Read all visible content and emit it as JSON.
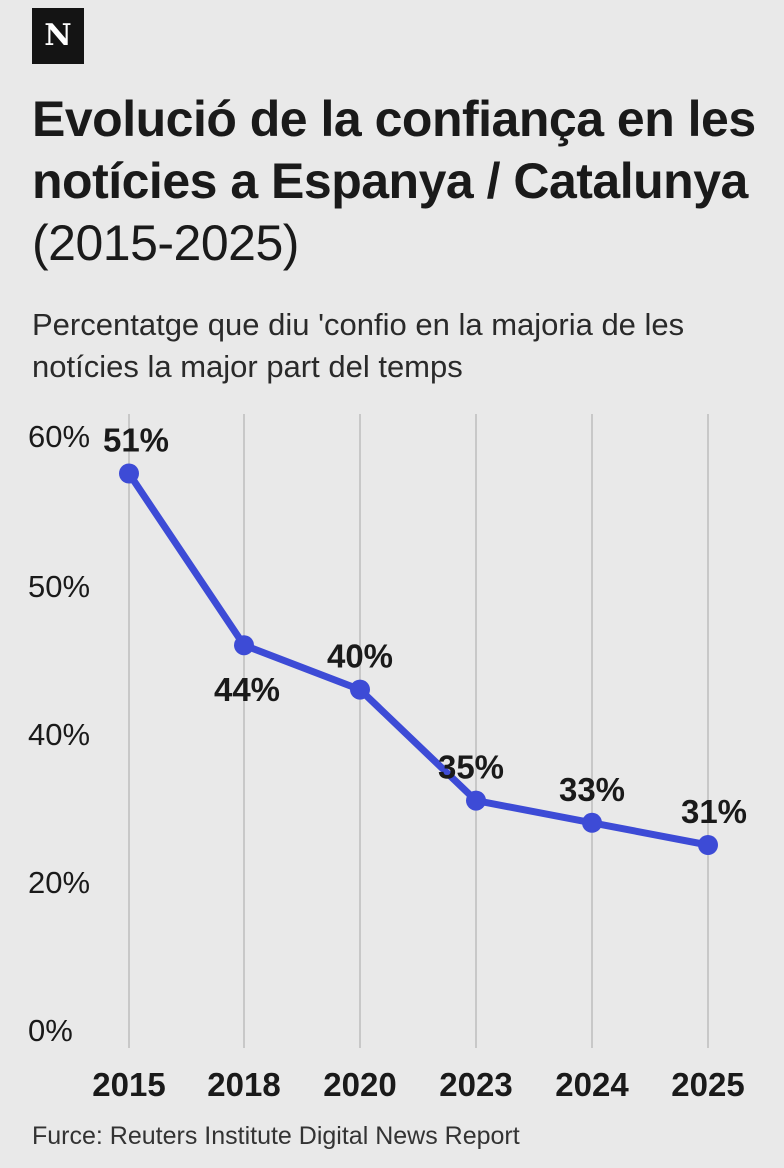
{
  "logo": {
    "letter": "N"
  },
  "header": {
    "title_main": "Evolució de la confiança en les notícies a Espanya / Catalunya",
    "title_years": "(2015-2025)",
    "subtitle": "Percentatge que diu 'confio en la majoria de les notícies la major part del temps"
  },
  "footer": {
    "source": "Furce: Reuters Institute Digital News Report"
  },
  "colors": {
    "line": "#3d4bd6",
    "grid": "#c8c8c8",
    "background": "#e9e9e9",
    "text": "#1a1a1a"
  },
  "chart_data": {
    "type": "line",
    "title": "Evolució de la confiança en les notícies a Espanya / Catalunya (2015-2025)",
    "subtitle": "Percentatge que diu 'confio en la majoria de les notícies la major part del temps",
    "categories": [
      "2015",
      "2018",
      "2020",
      "2023",
      "2024",
      "2025"
    ],
    "y_tick_labels": [
      "60%",
      "50%",
      "40%",
      "20%",
      "0%"
    ],
    "series": [
      {
        "values": [
          51,
          44,
          40,
          35,
          33,
          31
        ],
        "labels": [
          "51%",
          "44%",
          "40%",
          "35%",
          "33%",
          "31%"
        ],
        "plotted_level": [
          57.5,
          46,
          43,
          35.5,
          34,
          32.5
        ]
      }
    ],
    "plotted_level_note": "series drawn against the printed (non-uniform) axis; plotted_level gives the axis reading of each point",
    "grid": "vertical",
    "legend": "none"
  }
}
